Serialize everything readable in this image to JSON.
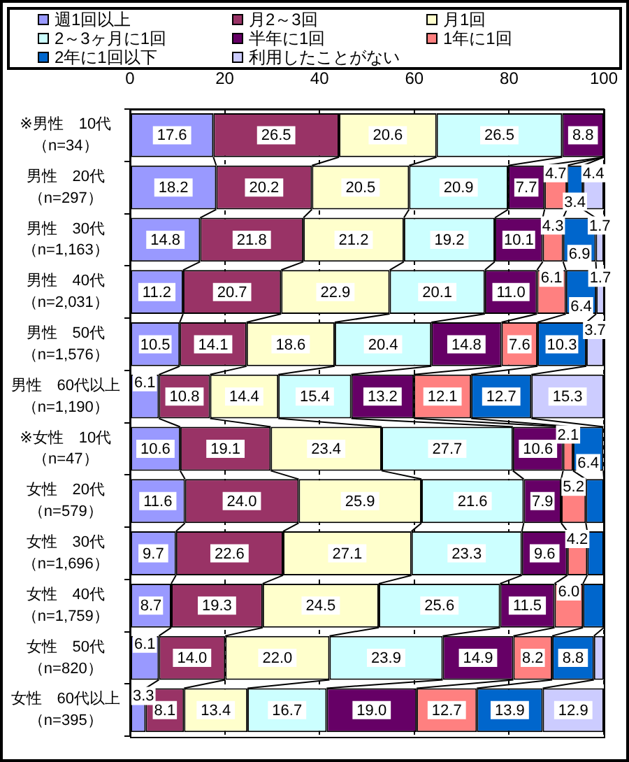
{
  "chart_data": {
    "type": "bar",
    "orientation": "horizontal",
    "stacked": true,
    "categories": [
      "※男性　10代（n=34）",
      "男性　20代（n=297）",
      "男性　30代（n=1,163）",
      "男性　40代（n=2,031）",
      "男性　50代（n=1,576）",
      "男性　60代以上（n=1,190）",
      "※女性　10代（n=47）",
      "女性　20代（n=579）",
      "女性　30代（n=1,696）",
      "女性　40代（n=1,759）",
      "女性　50代（n=820）",
      "女性　60代以上（n=395）"
    ],
    "series": [
      {
        "name": "週1回以上",
        "color": "#9999ff",
        "values": [
          17.6,
          18.2,
          14.8,
          11.2,
          10.5,
          6.1,
          10.6,
          11.6,
          9.7,
          8.7,
          6.1,
          3.3
        ],
        "value_labels": [
          "17.6",
          "18.2",
          "14.8",
          "11.2",
          "10.5",
          "6.1",
          "10.6",
          "11.6",
          "9.7",
          "8.7",
          "6.1",
          "3.3"
        ]
      },
      {
        "name": "月2～3回",
        "color": "#993366",
        "values": [
          26.5,
          20.2,
          21.8,
          20.7,
          14.1,
          10.8,
          19.1,
          24.0,
          22.6,
          19.3,
          14.0,
          8.1
        ],
        "value_labels": [
          "26.5",
          "20.2",
          "21.8",
          "20.7",
          "14.1",
          "10.8",
          "19.1",
          "24.0",
          "22.6",
          "19.3",
          "14.0",
          "8.1"
        ]
      },
      {
        "name": "月1回",
        "color": "#ffffcc",
        "values": [
          20.6,
          20.5,
          21.2,
          22.9,
          18.6,
          14.4,
          23.4,
          25.9,
          27.1,
          24.5,
          22.0,
          13.4
        ],
        "value_labels": [
          "20.6",
          "20.5",
          "21.2",
          "22.9",
          "18.6",
          "14.4",
          "23.4",
          "25.9",
          "27.1",
          "24.5",
          "22.0",
          "13.4"
        ]
      },
      {
        "name": "2～3ヶ月に1回",
        "color": "#ccffff",
        "values": [
          26.5,
          20.9,
          19.2,
          20.1,
          20.4,
          15.4,
          27.7,
          21.6,
          23.3,
          25.6,
          23.9,
          16.7
        ],
        "value_labels": [
          "26.5",
          "20.9",
          "19.2",
          "20.1",
          "20.4",
          "15.4",
          "27.7",
          "21.6",
          "23.3",
          "25.6",
          "23.9",
          "16.7"
        ]
      },
      {
        "name": "半年に1回",
        "color": "#660066",
        "values": [
          8.8,
          7.7,
          10.1,
          11.0,
          14.8,
          13.2,
          10.6,
          7.9,
          9.6,
          11.5,
          14.9,
          19.0
        ],
        "value_labels": [
          "8.8",
          "7.7",
          "10.1",
          "11.0",
          "14.8",
          "13.2",
          "10.6",
          "7.9",
          "9.6",
          "11.5",
          "14.9",
          "19.0"
        ]
      },
      {
        "name": "1年に1回",
        "color": "#ff8080",
        "values": [
          0,
          4.7,
          4.3,
          6.1,
          7.6,
          12.1,
          2.1,
          5.2,
          4.2,
          6.0,
          8.2,
          12.7
        ],
        "value_labels": [
          null,
          "4.7",
          "4.3",
          "6.1",
          "7.6",
          "12.1",
          "2.1",
          "5.2",
          "4.2",
          "6.0",
          "8.2",
          "12.7"
        ]
      },
      {
        "name": "2年に1回以下",
        "color": "#0066cc",
        "values": [
          0,
          3.4,
          6.9,
          6.4,
          10.3,
          12.7,
          6.4,
          3.8,
          3.5,
          4.4,
          8.8,
          13.9
        ],
        "value_labels": [
          null,
          "3.4",
          "6.9",
          "6.4",
          "10.3",
          "12.7",
          "6.4",
          null,
          null,
          null,
          "8.8",
          "13.9"
        ]
      },
      {
        "name": "利用したことがない",
        "color": "#ccccff",
        "values": [
          0,
          4.4,
          1.7,
          1.7,
          3.7,
          15.3,
          0,
          0,
          0,
          0,
          2.1,
          12.9
        ],
        "value_labels": [
          null,
          "4.4",
          "1.7",
          "1.7",
          "3.7",
          "15.3",
          null,
          null,
          null,
          null,
          null,
          "12.9"
        ]
      }
    ],
    "xlim": [
      0,
      100
    ],
    "xticks": [
      0,
      20,
      40,
      60,
      80,
      100
    ],
    "grid": "x",
    "legend": "top"
  }
}
